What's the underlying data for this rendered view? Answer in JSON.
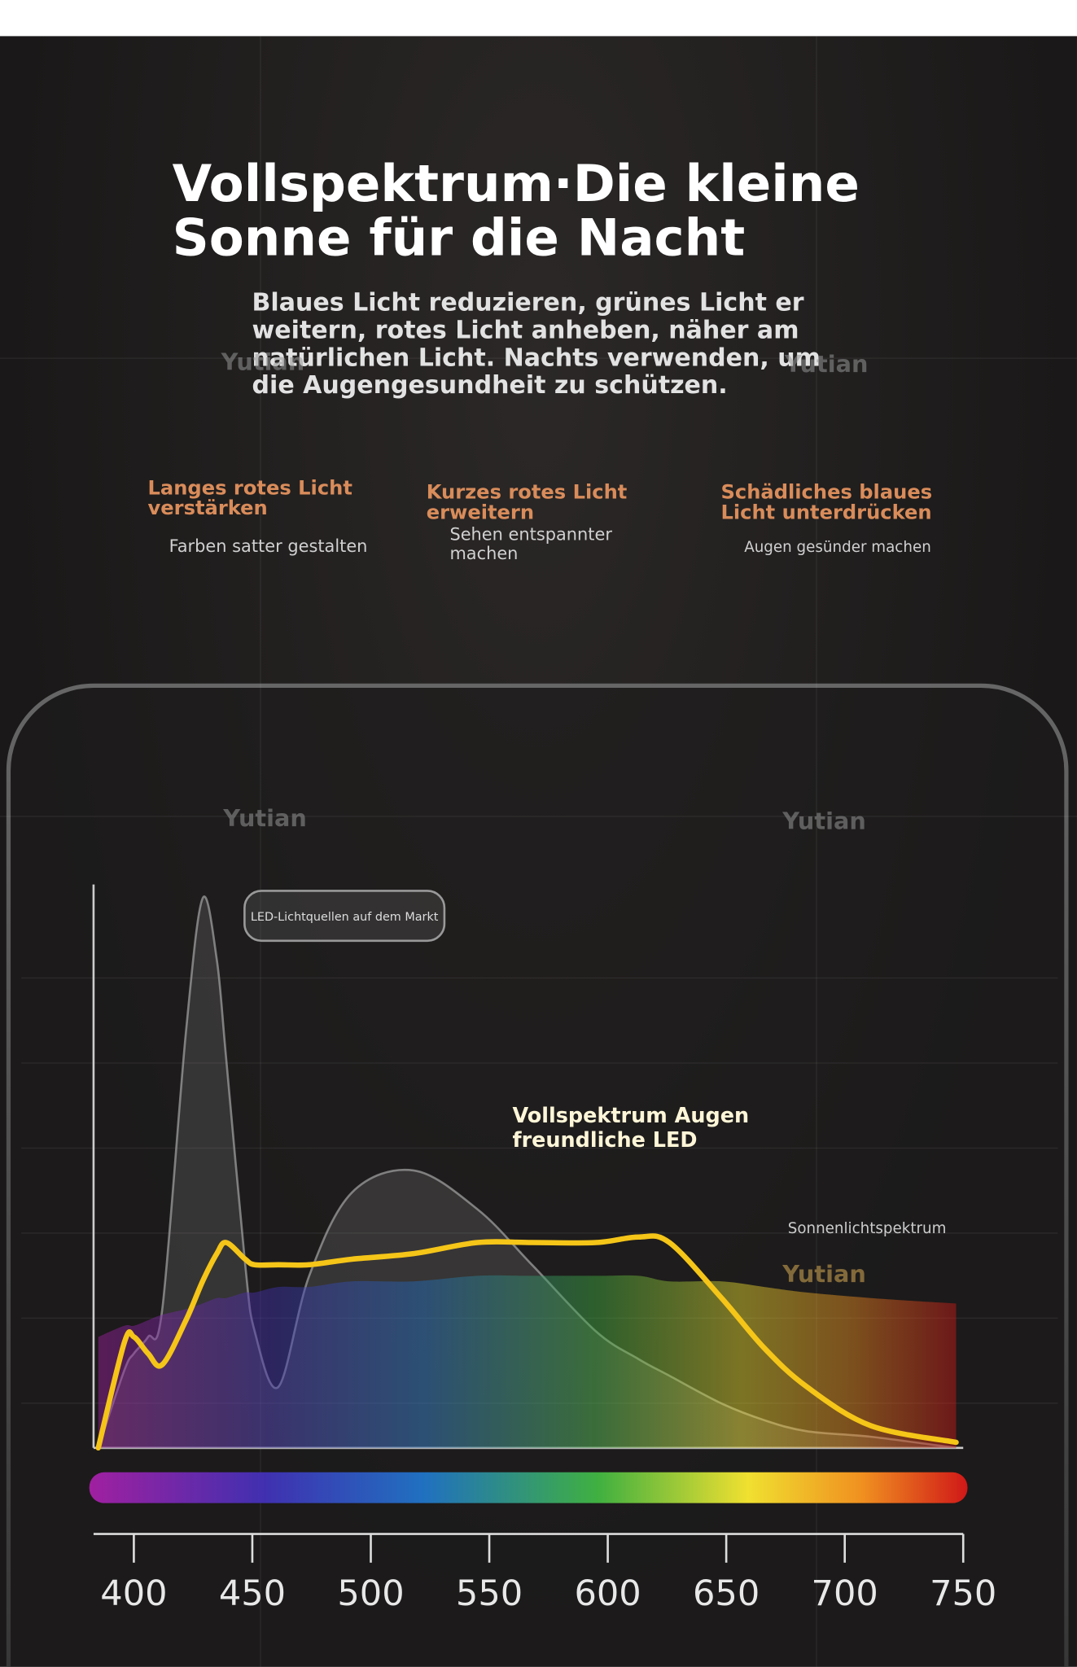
{
  "header": {
    "title": "Vollspektrum·Die kleine Sonne für die Nacht",
    "subtitle": "Blaues Licht reduzieren, grünes Licht erweitern, rotes Licht anheben, näher am natürlichen Licht. Nachts verwenden, um die Augengesundheit zu schützen."
  },
  "features": [
    {
      "title": "Langes rotes Licht verstärken",
      "text": "Farben satter gestalten"
    },
    {
      "title": "Kurzes rotes Licht erweitern",
      "text": "Sehen entspannter machen"
    },
    {
      "title": "Schädliches blaues Licht unterdrücken",
      "text": "Augen gesünder machen"
    }
  ],
  "watermarks": [
    "Yutian",
    "Yutian",
    "Yutian",
    "Yutian",
    "Yutian"
  ],
  "chart_data": {
    "type": "line",
    "x": [
      385,
      396,
      400,
      406,
      412,
      422,
      429,
      435,
      439,
      447,
      451,
      461,
      474,
      492,
      518,
      545,
      568,
      595,
      613,
      626,
      648,
      666,
      684,
      711,
      747
    ],
    "series": [
      {
        "name": "LED-Lichtquellen auf dem Markt",
        "color": "#a5a5a5",
        "values": [
          0,
          14,
          17,
          20,
          25,
          75,
          99,
          88,
          70,
          33,
          21,
          11,
          31,
          46,
          50,
          43,
          33,
          21,
          16,
          13,
          8,
          5,
          3,
          2,
          0
        ]
      },
      {
        "name": "Sonnenlichtspektrum",
        "color": "spectrum",
        "values": [
          20,
          22,
          22,
          23,
          24,
          25,
          26,
          27,
          27,
          28,
          28,
          29,
          29,
          30,
          30,
          31,
          31,
          31,
          31,
          30,
          30,
          29,
          28,
          27,
          26
        ]
      },
      {
        "name": "Vollspektrum Augenfreundliche LED",
        "color": "#f5c518",
        "values": [
          0,
          19,
          20,
          17,
          15,
          23,
          30,
          35,
          37,
          34,
          33,
          33,
          33,
          34,
          35,
          37,
          37,
          37,
          38,
          37,
          27,
          18,
          11,
          4,
          1
        ]
      }
    ],
    "xlim": [
      383,
      750
    ],
    "xticks": [
      400,
      450,
      500,
      550,
      600,
      650,
      700,
      750
    ],
    "ylim": [
      0,
      100
    ]
  }
}
